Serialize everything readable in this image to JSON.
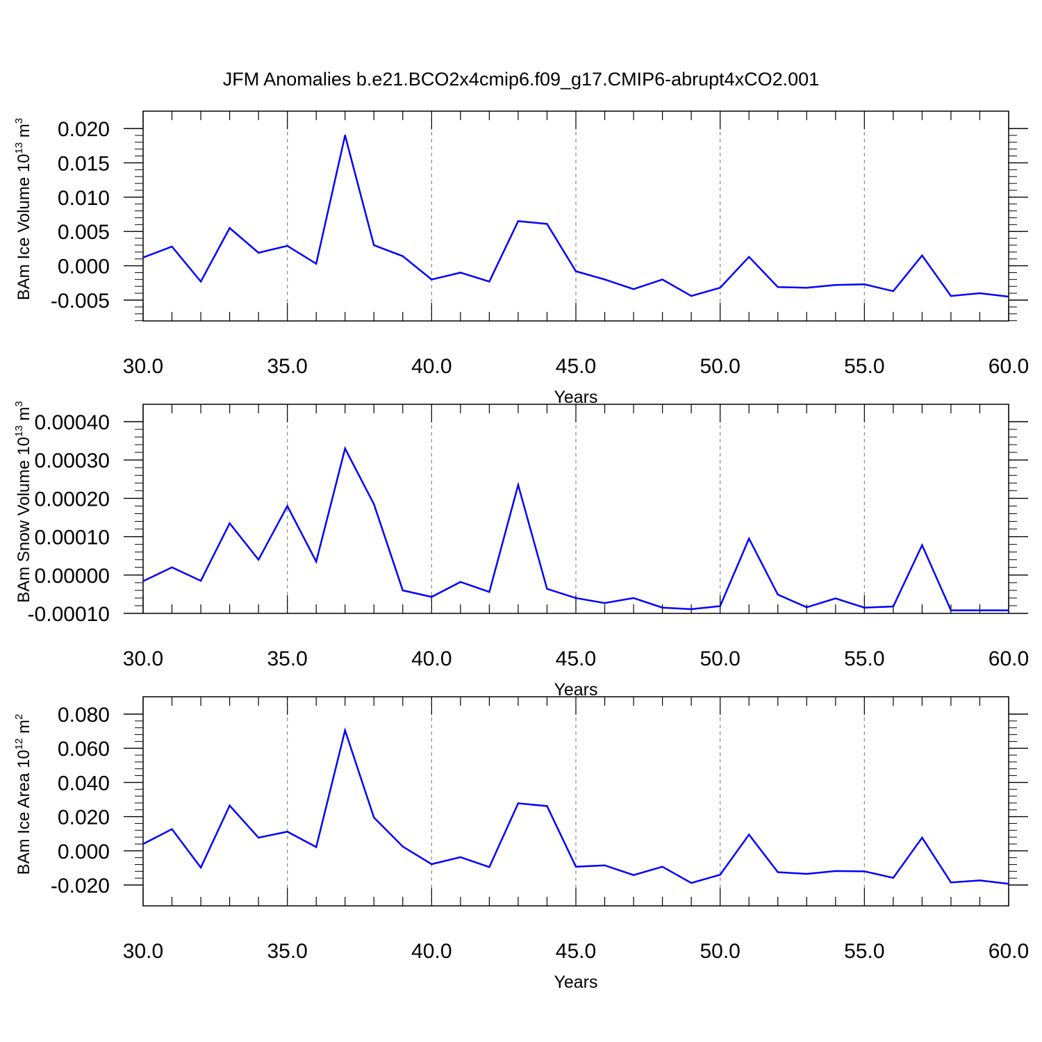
{
  "title": "JFM Anomalies b.e21.BCO2x4cmip6.f09_g17.CMIP6-abrupt4xCO2.001",
  "colors": {
    "line": "#0000ff",
    "axis": "#000000",
    "grid": "#888888"
  },
  "chart_data": [
    {
      "type": "line",
      "xlabel": "Years",
      "ylabel": {
        "main": "BAm Ice Volume 10",
        "sup": "13",
        "unit": " m",
        "unit_sup": "3"
      },
      "xlim": [
        30,
        60
      ],
      "ylim": [
        -0.008,
        0.02
      ],
      "xticks": [
        "30.0",
        "35.0",
        "40.0",
        "45.0",
        "50.0",
        "55.0",
        "60.0"
      ],
      "yticks": [
        {
          "v": 0.02,
          "label": "0.020"
        },
        {
          "v": 0.015,
          "label": "0.015"
        },
        {
          "v": 0.01,
          "label": "0.010"
        },
        {
          "v": 0.005,
          "label": "0.005"
        },
        {
          "v": 0.0,
          "label": "0.000"
        },
        {
          "v": -0.005,
          "label": "-0.005"
        }
      ],
      "x": [
        30,
        31,
        32,
        33,
        34,
        35,
        36,
        37,
        38,
        39,
        40,
        41,
        42,
        43,
        44,
        45,
        46,
        47,
        48,
        49,
        50,
        51,
        52,
        53,
        54,
        55,
        56,
        57,
        58,
        59,
        60
      ],
      "y": [
        0.0012,
        0.0028,
        -0.0023,
        0.0055,
        0.0019,
        0.0029,
        0.0003,
        0.019,
        0.003,
        0.0014,
        -0.002,
        -0.001,
        -0.0023,
        0.0065,
        0.0061,
        -0.0008,
        -0.002,
        -0.0034,
        -0.002,
        -0.0044,
        -0.0032,
        0.0013,
        -0.0031,
        -0.0032,
        -0.0028,
        -0.0027,
        -0.0037,
        0.0015,
        -0.0044,
        -0.004,
        -0.0045
      ]
    },
    {
      "type": "line",
      "xlabel": "Years",
      "ylabel": {
        "main": "BAm Snow Volume 10",
        "sup": "13",
        "unit": " m",
        "unit_sup": "3"
      },
      "xlim": [
        30,
        60
      ],
      "ylim": [
        -0.0001,
        0.0004
      ],
      "xticks": [
        "30.0",
        "35.0",
        "40.0",
        "45.0",
        "50.0",
        "55.0",
        "60.0"
      ],
      "yticks": [
        {
          "v": 0.0004,
          "label": "0.00040"
        },
        {
          "v": 0.0003,
          "label": "0.00030"
        },
        {
          "v": 0.0002,
          "label": "0.00020"
        },
        {
          "v": 0.0001,
          "label": "0.00010"
        },
        {
          "v": 0.0,
          "label": "0.00000"
        },
        {
          "v": -0.0001,
          "label": "-0.00010"
        }
      ],
      "x": [
        30,
        31,
        32,
        33,
        34,
        35,
        36,
        37,
        38,
        39,
        40,
        41,
        42,
        43,
        44,
        45,
        46,
        47,
        48,
        49,
        50,
        51,
        52,
        53,
        54,
        55,
        56,
        57,
        58,
        59,
        60
      ],
      "y": [
        -1.6e-05,
        2e-05,
        -1.5e-05,
        0.000135,
        4e-05,
        0.00018,
        3.5e-05,
        0.00033,
        0.000185,
        -4e-05,
        -5.7e-05,
        -1.8e-05,
        -4.4e-05,
        0.000235,
        -3.6e-05,
        -6e-05,
        -7.3e-05,
        -6e-05,
        -8.5e-05,
        -8.9e-05,
        -8.1e-05,
        9.5e-05,
        -5.1e-05,
        -8.4e-05,
        -6.1e-05,
        -8.5e-05,
        -8.2e-05,
        7.8e-05,
        -9.2e-05,
        -9.2e-05,
        -9.2e-05
      ]
    },
    {
      "type": "line",
      "xlabel": "Years",
      "ylabel": {
        "main": "BAm Ice Area 10",
        "sup": "12",
        "unit": " m",
        "unit_sup": "2"
      },
      "xlim": [
        30,
        60
      ],
      "ylim": [
        -0.02,
        0.08
      ],
      "xticks": [
        "30.0",
        "35.0",
        "40.0",
        "45.0",
        "50.0",
        "55.0",
        "60.0"
      ],
      "yticks": [
        {
          "v": 0.08,
          "label": "0.080"
        },
        {
          "v": 0.06,
          "label": "0.060"
        },
        {
          "v": 0.04,
          "label": "0.040"
        },
        {
          "v": 0.02,
          "label": "0.020"
        },
        {
          "v": 0.0,
          "label": "0.000"
        },
        {
          "v": -0.02,
          "label": "-0.020"
        }
      ],
      "x": [
        30,
        31,
        32,
        33,
        34,
        35,
        36,
        37,
        38,
        39,
        40,
        41,
        42,
        43,
        44,
        45,
        46,
        47,
        48,
        49,
        50,
        51,
        52,
        53,
        54,
        55,
        56,
        57,
        58,
        59,
        60
      ],
      "y": [
        0.004,
        0.0127,
        -0.0098,
        0.0265,
        0.0077,
        0.0112,
        0.0022,
        0.0705,
        0.0195,
        0.0025,
        -0.0078,
        -0.0037,
        -0.0095,
        0.0278,
        0.0262,
        -0.0093,
        -0.0085,
        -0.0142,
        -0.0093,
        -0.0188,
        -0.014,
        0.0095,
        -0.0125,
        -0.0135,
        -0.0118,
        -0.012,
        -0.0158,
        0.0077,
        -0.0185,
        -0.0173,
        -0.0193
      ]
    }
  ]
}
